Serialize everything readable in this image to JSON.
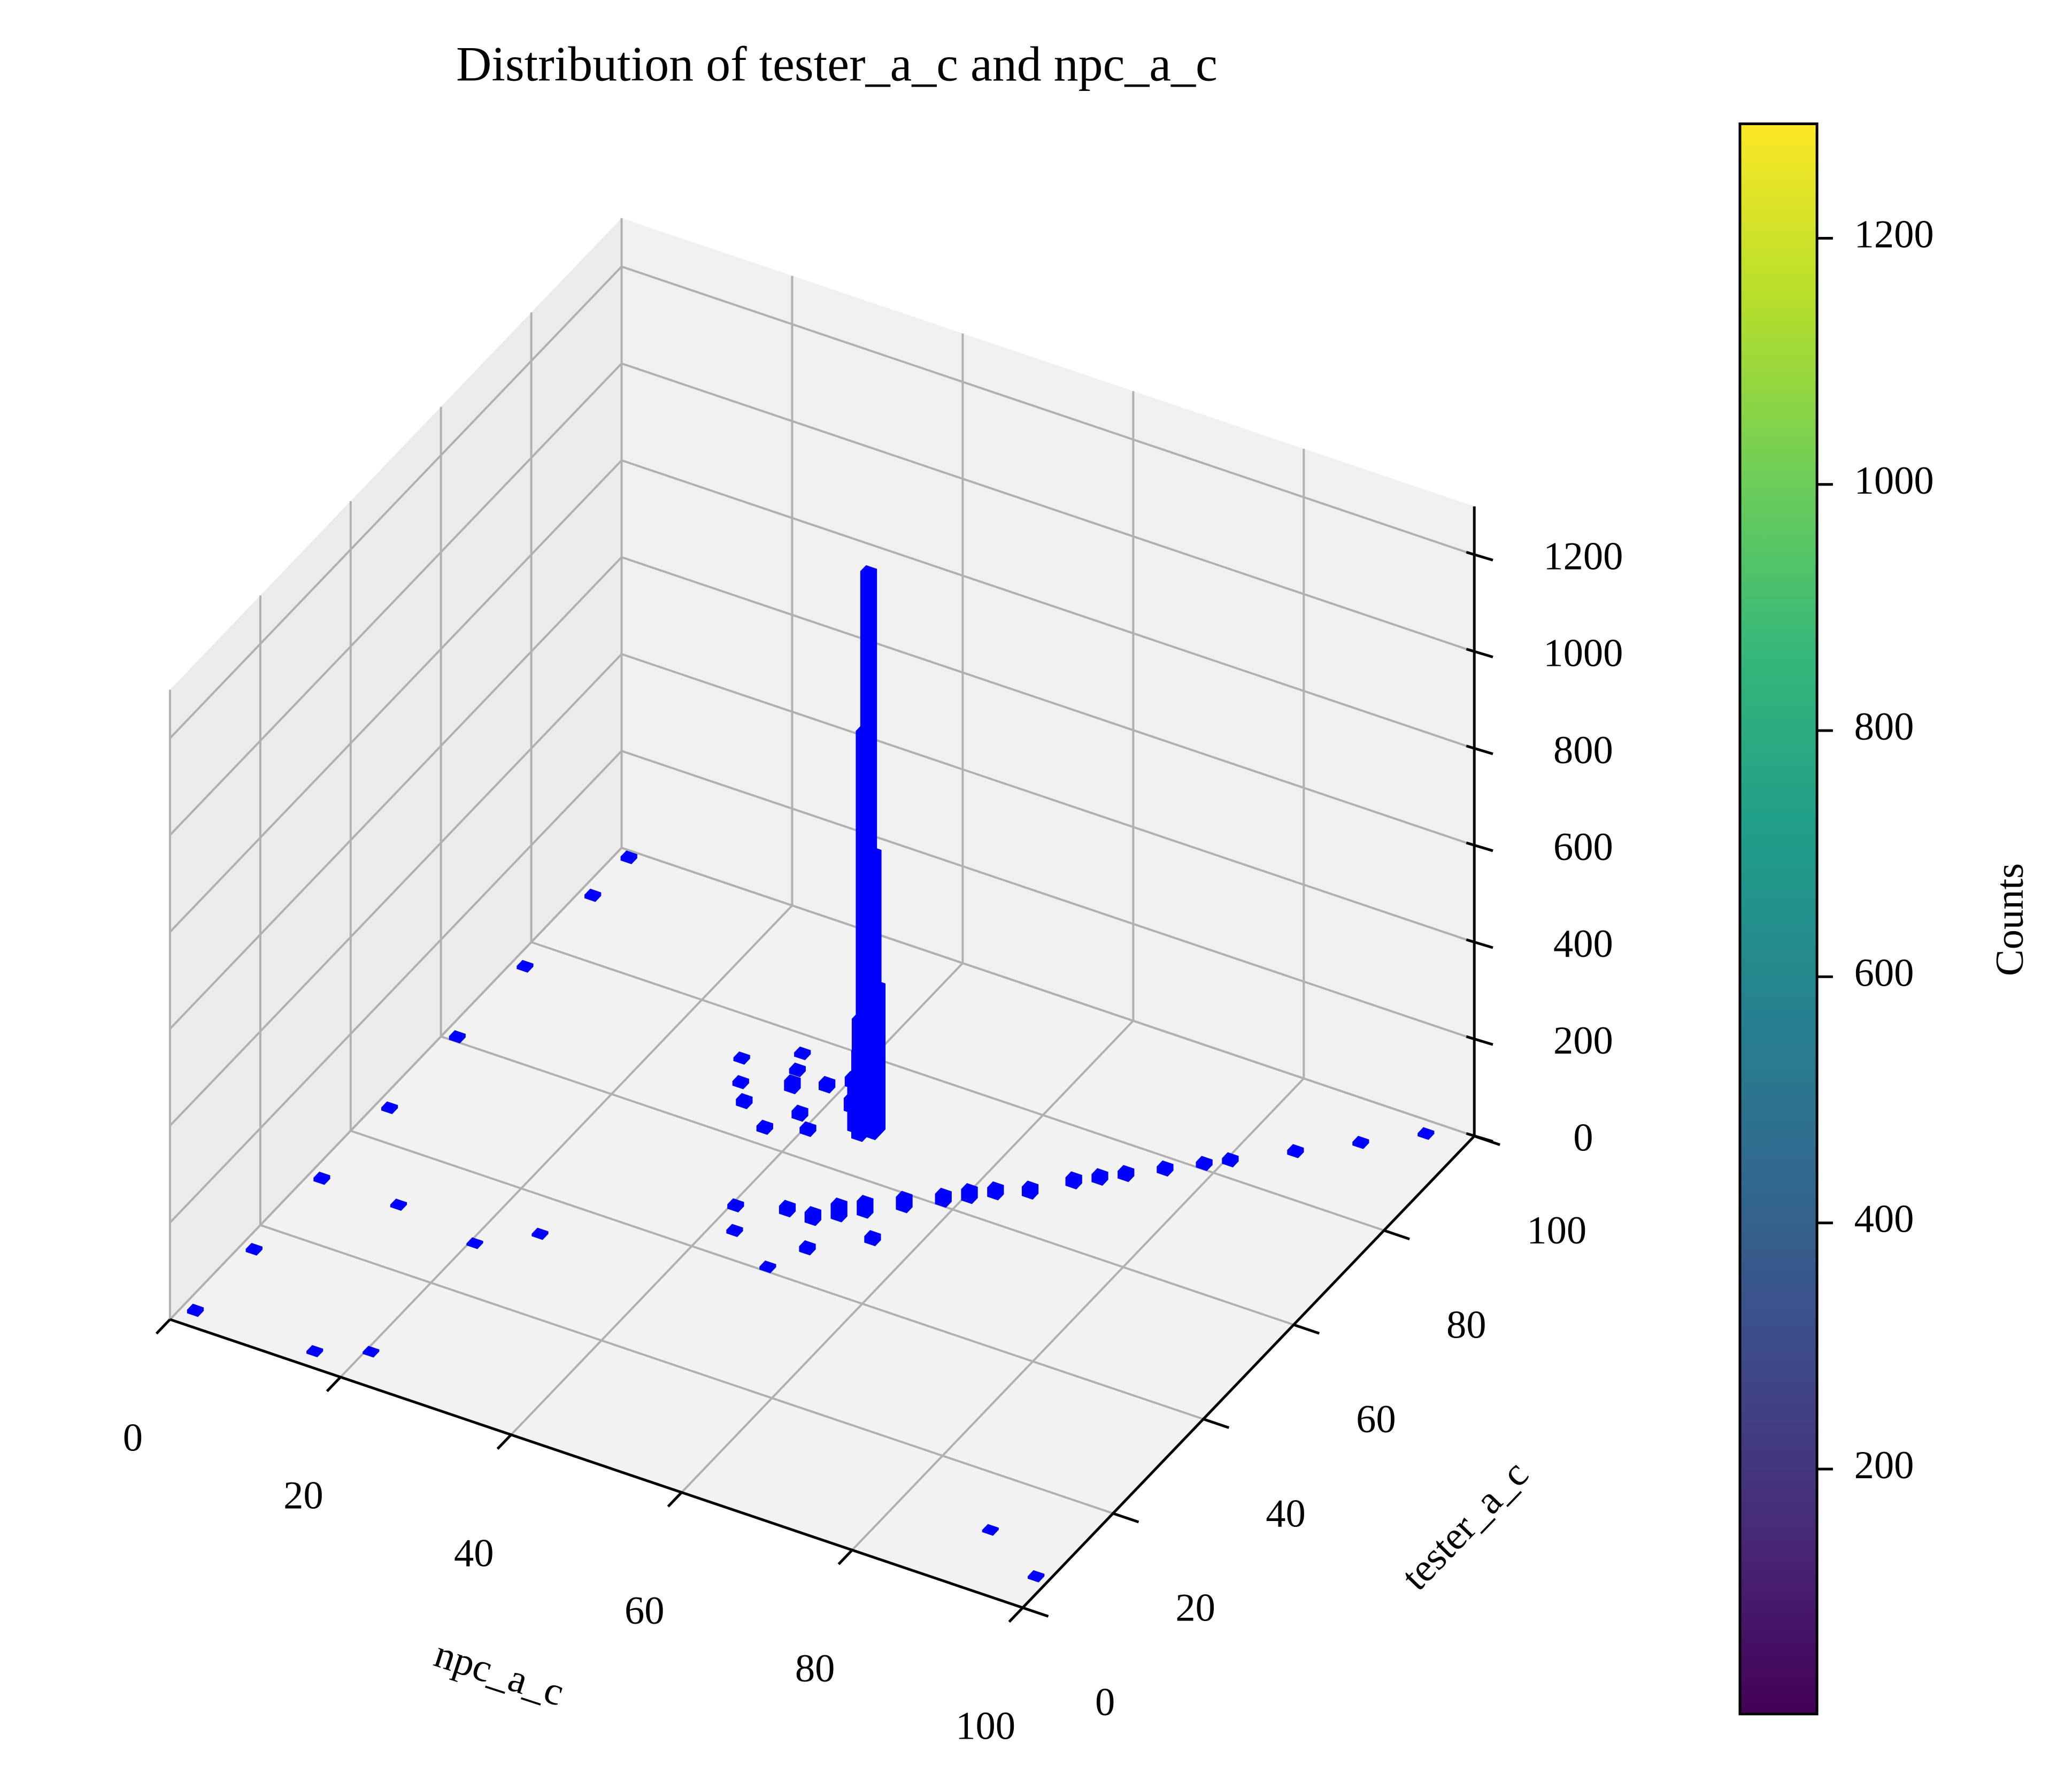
{
  "chart_data": {
    "type": "bar3d",
    "title": "Distribution of tester_a_c and npc_a_c",
    "xlabel": "npc_a_c",
    "ylabel": "tester_a_c",
    "x": [
      45,
      45,
      45,
      46,
      44,
      45,
      46,
      44,
      35,
      38,
      32,
      40,
      36,
      30,
      42,
      38,
      34,
      40,
      28,
      33,
      50,
      55,
      60,
      65,
      70,
      75,
      80,
      85,
      90,
      95,
      48,
      52,
      58,
      62,
      68,
      72,
      78,
      45,
      50,
      40,
      55,
      42,
      48,
      1,
      1,
      1,
      1,
      1,
      1,
      1,
      1,
      10,
      20,
      25,
      90,
      98,
      20,
      15
    ],
    "y": [
      68,
      67,
      69,
      68,
      68,
      66,
      67,
      67,
      70,
      72,
      65,
      74,
      62,
      68,
      70,
      66,
      73,
      64,
      72,
      76,
      52,
      57,
      62,
      66,
      72,
      77,
      82,
      87,
      92,
      97,
      50,
      54,
      60,
      64,
      70,
      74,
      80,
      50,
      45,
      48,
      50,
      44,
      40,
      2,
      15,
      30,
      45,
      60,
      75,
      90,
      98,
      30,
      28,
      33,
      10,
      5,
      5,
      2
    ],
    "values": [
      1150,
      830,
      560,
      300,
      220,
      180,
      120,
      90,
      20,
      15,
      12,
      18,
      10,
      8,
      25,
      14,
      9,
      11,
      6,
      7,
      30,
      25,
      22,
      18,
      15,
      12,
      10,
      8,
      6,
      5,
      20,
      28,
      20,
      18,
      16,
      14,
      10,
      15,
      10,
      8,
      12,
      6,
      5,
      6,
      5,
      6,
      5,
      6,
      5,
      6,
      7,
      4,
      3,
      4,
      3,
      4,
      3,
      4
    ],
    "color": "blue",
    "xlim": [
      0,
      100
    ],
    "ylim": [
      0,
      100
    ],
    "zlim": [
      0,
      1300
    ],
    "xticks": [
      0,
      20,
      40,
      60,
      80,
      100
    ],
    "yticks": [
      0,
      20,
      40,
      60,
      80,
      100
    ],
    "zticks": [
      0,
      200,
      400,
      600,
      800,
      1000,
      1200
    ],
    "grid": true,
    "colorbar": {
      "label": "Counts",
      "colormap": "viridis",
      "clim": [
        1,
        1293
      ],
      "ticks": [
        200,
        400,
        600,
        800,
        1000,
        1200
      ]
    }
  }
}
